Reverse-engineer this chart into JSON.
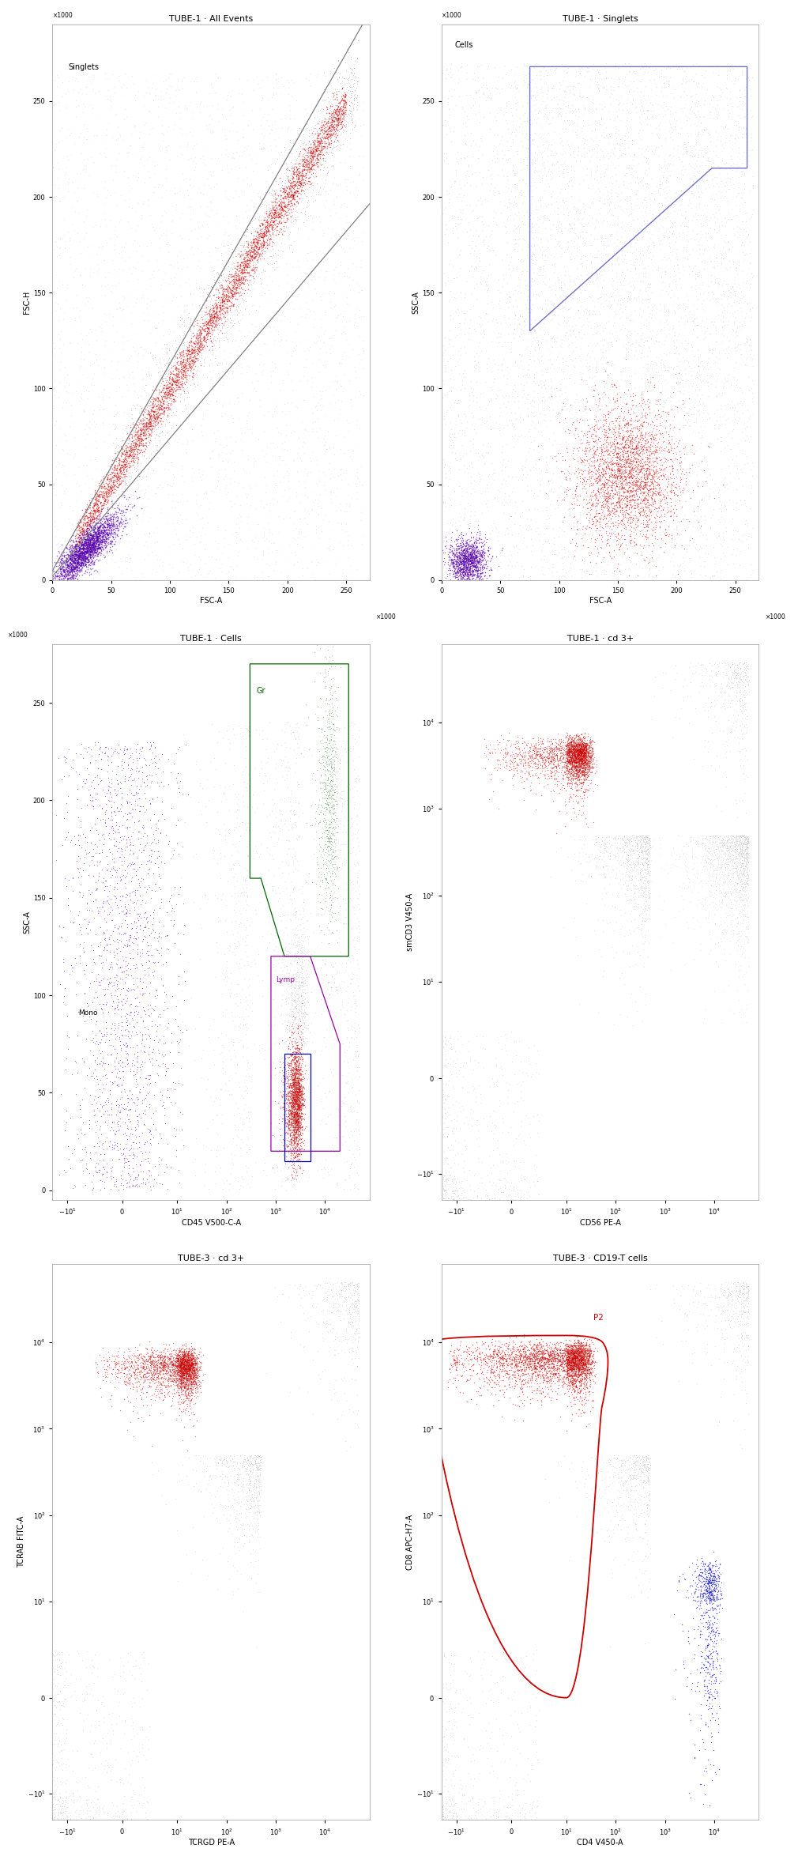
{
  "plot1": {
    "title": "TUBE-1 · All Events",
    "xlabel": "FSC-A",
    "ylabel": "FSC-H",
    "gate_label": "Singlets",
    "xlim": [
      0,
      270
    ],
    "ylim": [
      0,
      290
    ],
    "xticks": [
      0,
      50,
      100,
      150,
      200,
      250
    ],
    "yticks": [
      0,
      50,
      100,
      150,
      200,
      250
    ]
  },
  "plot2": {
    "title": "TUBE-1 · Singlets",
    "xlabel": "FSC-A",
    "ylabel": "SSC-A",
    "gate_label": "Cells",
    "xlim": [
      0,
      270
    ],
    "ylim": [
      0,
      290
    ],
    "xticks": [
      0,
      50,
      100,
      150,
      200,
      250
    ],
    "yticks": [
      0,
      50,
      100,
      150,
      200,
      250
    ]
  },
  "plot3": {
    "title": "TUBE-1 · Cells",
    "xlabel": "CD45 V500-C-A",
    "ylabel": "SSC-A",
    "xlim_log": [
      -20,
      100000
    ],
    "ylim": [
      -5,
      280
    ],
    "yticks": [
      0,
      50,
      100,
      150,
      200,
      250
    ],
    "gr_label": "Gr",
    "mono_label": "Mono",
    "lymp_label": "Lymp"
  },
  "plot4": {
    "title": "TUBE-1 · cd 3+",
    "xlabel": "CD56 PE-A",
    "ylabel": "smCD3 V450-A"
  },
  "plot5": {
    "title": "TUBE-3 · cd 3+",
    "xlabel": "TCRGD PE-A",
    "ylabel": "TCRAB FITC-A"
  },
  "plot6": {
    "title": "TUBE-3 · CD19-T cells",
    "xlabel": "CD4 V450-A",
    "ylabel": "CD8 APC-H7-A",
    "gate_label": "P2"
  },
  "colors": {
    "red": "#cc0000",
    "purple": "#5500aa",
    "gray": "#999999",
    "dark_gray": "#555555",
    "green": "#006600",
    "blue": "#0000bb",
    "pink_purple": "#9900aa",
    "light_gray": "#bbbbbb"
  }
}
